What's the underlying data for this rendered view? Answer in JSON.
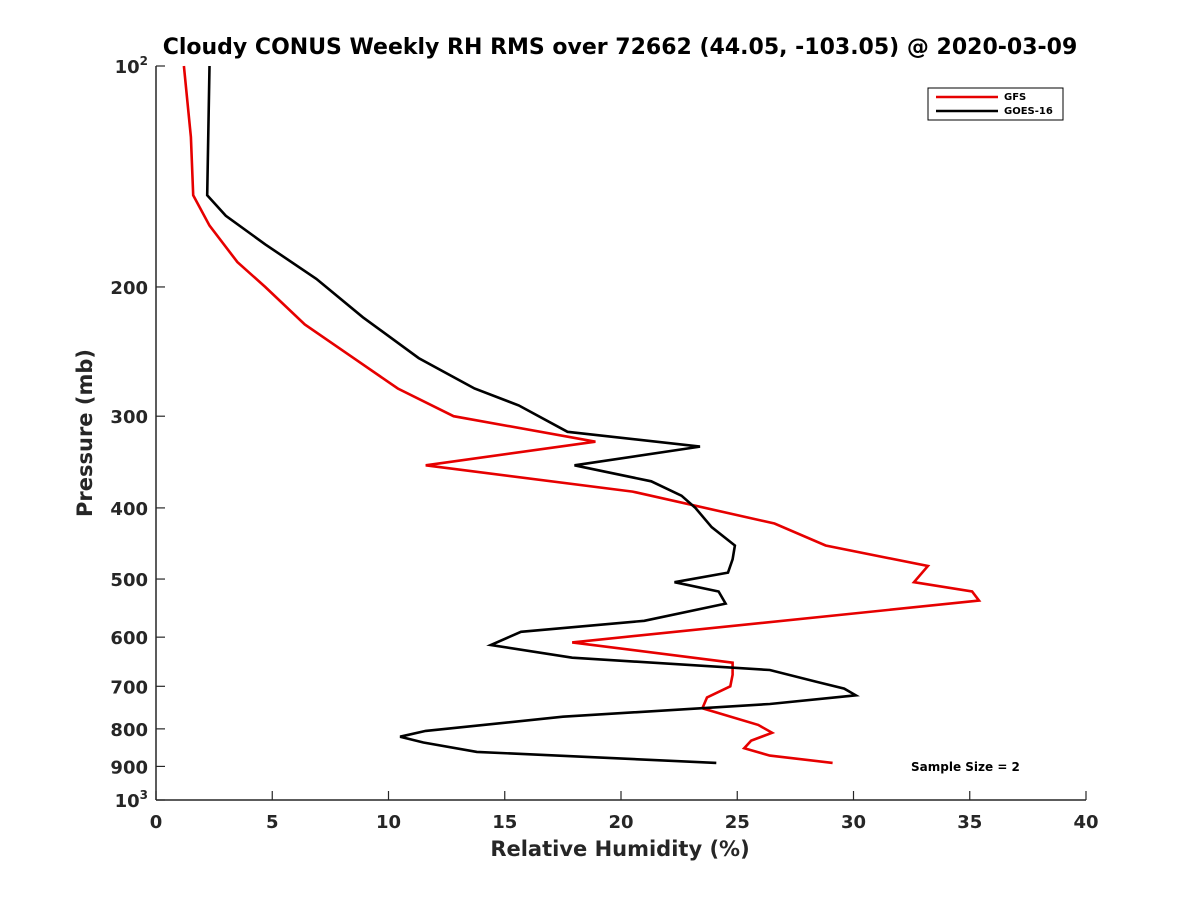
{
  "chart_data": {
    "type": "line",
    "title": "Cloudy CONUS Weekly RH RMS over 72662 (44.05, -103.05) @ 2020-03-09",
    "xlabel": "Relative Humidity (%)",
    "ylabel": "Pressure (mb)",
    "xlim": [
      0,
      40
    ],
    "ylim": [
      100,
      1000
    ],
    "y_scale": "log",
    "y_reversed": true,
    "grid": false,
    "legend_position": "top-right",
    "x_ticks": [
      "0",
      "5",
      "10",
      "15",
      "20",
      "25",
      "30",
      "35",
      "40"
    ],
    "y_ticks": [
      {
        "value": 100,
        "base": "10",
        "exp": "2"
      },
      {
        "value": 200,
        "label": "200"
      },
      {
        "value": 300,
        "label": "300"
      },
      {
        "value": 400,
        "label": "400"
      },
      {
        "value": 500,
        "label": "500"
      },
      {
        "value": 600,
        "label": "600"
      },
      {
        "value": 700,
        "label": "700"
      },
      {
        "value": 800,
        "label": "800"
      },
      {
        "value": 900,
        "label": "900"
      },
      {
        "value": 1000,
        "base": "10",
        "exp": "3"
      }
    ],
    "series": [
      {
        "name": "GFS",
        "color": "#e60000",
        "points": [
          [
            1.2,
            100
          ],
          [
            1.5,
            125
          ],
          [
            1.6,
            150
          ],
          [
            2.3,
            165
          ],
          [
            3.5,
            185
          ],
          [
            4.7,
            200
          ],
          [
            6.4,
            225
          ],
          [
            8.5,
            250
          ],
          [
            10.4,
            275
          ],
          [
            12.8,
            300
          ],
          [
            18.9,
            325
          ],
          [
            11.6,
            350
          ],
          [
            20.5,
            380
          ],
          [
            26.6,
            420
          ],
          [
            28.8,
            450
          ],
          [
            33.2,
            480
          ],
          [
            32.6,
            505
          ],
          [
            35.1,
            520
          ],
          [
            35.4,
            535
          ],
          [
            17.9,
            610
          ],
          [
            24.8,
            650
          ],
          [
            24.8,
            675
          ],
          [
            24.7,
            700
          ],
          [
            23.7,
            725
          ],
          [
            23.5,
            750
          ],
          [
            25.9,
            790
          ],
          [
            26.5,
            810
          ],
          [
            25.6,
            830
          ],
          [
            25.3,
            850
          ],
          [
            26.4,
            870
          ],
          [
            29.1,
            890
          ]
        ]
      },
      {
        "name": "GOES-16",
        "color": "#000000",
        "points": [
          [
            2.3,
            100
          ],
          [
            2.2,
            150
          ],
          [
            3.0,
            160
          ],
          [
            4.7,
            175
          ],
          [
            6.9,
            195
          ],
          [
            8.9,
            220
          ],
          [
            11.3,
            250
          ],
          [
            13.7,
            275
          ],
          [
            15.6,
            290
          ],
          [
            17.7,
            315
          ],
          [
            23.4,
            330
          ],
          [
            18.0,
            350
          ],
          [
            21.3,
            368
          ],
          [
            22.6,
            385
          ],
          [
            23.2,
            400
          ],
          [
            23.9,
            425
          ],
          [
            24.9,
            450
          ],
          [
            24.8,
            470
          ],
          [
            24.6,
            490
          ],
          [
            22.3,
            505
          ],
          [
            24.2,
            520
          ],
          [
            24.5,
            540
          ],
          [
            21.0,
            570
          ],
          [
            15.7,
            590
          ],
          [
            14.4,
            615
          ],
          [
            17.9,
            640
          ],
          [
            26.4,
            665
          ],
          [
            28.4,
            690
          ],
          [
            29.6,
            705
          ],
          [
            30.1,
            720
          ],
          [
            26.4,
            740
          ],
          [
            17.5,
            770
          ],
          [
            11.6,
            805
          ],
          [
            10.5,
            820
          ],
          [
            11.5,
            835
          ],
          [
            13.8,
            860
          ],
          [
            24.1,
            890
          ]
        ]
      }
    ],
    "annotation": "Sample Size = 2"
  }
}
